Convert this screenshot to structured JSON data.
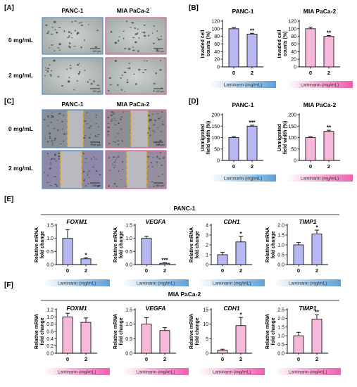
{
  "panels": {
    "A": {
      "label": "[A]",
      "col1": "PANC-1",
      "col2": "MIA PaCa-2",
      "row1": "0 mg/mL",
      "row2": "2 mg/mL",
      "scale": "100 µm"
    },
    "C": {
      "label": "[C]",
      "col1": "PANC-1",
      "col2": "MIA PaCa-2",
      "row1": "0 mg/mL",
      "row2": "2 mg/mL",
      "scale": "200 µm"
    },
    "B": {
      "label": "[B]"
    },
    "D": {
      "label": "[D]"
    },
    "E": {
      "label": "[E]",
      "group_title": "PANC-1"
    },
    "F": {
      "label": "[F]",
      "group_title": "MIA PaCa-2"
    }
  },
  "xaxis_title": "Laminarin (mg/mL)",
  "colors": {
    "panc_fill": "#b8b8f4",
    "mia_fill": "#f7b8dc",
    "panc_frame": "#5a90c8",
    "mia_frame": "#e0609e"
  },
  "chart_data": [
    {
      "id": "B1",
      "type": "bar",
      "title": "PANC-1",
      "ylabel": "Invaded cell counts (%)",
      "categories": [
        "0",
        "2"
      ],
      "values": [
        100,
        86
      ],
      "errors": [
        3,
        2
      ],
      "ylim": [
        0,
        120
      ],
      "yticks": [
        0,
        20,
        40,
        60,
        80,
        100,
        120
      ],
      "sig": [
        "",
        "**"
      ],
      "scheme": "panc"
    },
    {
      "id": "B2",
      "type": "bar",
      "title": "MIA PaCa-2",
      "ylabel": "Invaded cell counts (%)",
      "categories": [
        "0",
        "2"
      ],
      "values": [
        100,
        80
      ],
      "errors": [
        4,
        2
      ],
      "ylim": [
        0,
        120
      ],
      "yticks": [
        0,
        20,
        40,
        60,
        80,
        100,
        120
      ],
      "sig": [
        "",
        "**"
      ],
      "scheme": "mia"
    },
    {
      "id": "D1",
      "type": "bar",
      "title": "PANC-1",
      "ylabel": "Unmigrated field width (%)",
      "categories": [
        "0",
        "2"
      ],
      "values": [
        100,
        150
      ],
      "errors": [
        4,
        4
      ],
      "ylim": [
        0,
        200
      ],
      "yticks": [
        0,
        50,
        100,
        150,
        200
      ],
      "sig": [
        "",
        "***"
      ],
      "scheme": "panc"
    },
    {
      "id": "D2",
      "type": "bar",
      "title": "MIA  PaCa-2",
      "ylabel": "Unmigrated field width (%)",
      "categories": [
        "0",
        "2"
      ],
      "values": [
        100,
        127
      ],
      "errors": [
        3,
        5
      ],
      "ylim": [
        0,
        200
      ],
      "yticks": [
        0,
        50,
        100,
        150,
        200
      ],
      "sig": [
        "",
        "**"
      ],
      "scheme": "mia"
    },
    {
      "id": "E1",
      "type": "bar",
      "title": "FOXM1",
      "ylabel": "Relative mRNA fold change",
      "categories": [
        "0",
        "2"
      ],
      "values": [
        1.0,
        0.22
      ],
      "errors": [
        0.33,
        0.04
      ],
      "ylim": [
        0,
        1.5
      ],
      "yticks": [
        0.0,
        0.5,
        1.0,
        1.5
      ],
      "sig": [
        "",
        "*"
      ],
      "scheme": "panc"
    },
    {
      "id": "E2",
      "type": "bar",
      "title": "VEGFA",
      "ylabel": "Relative mRNA fold change",
      "categories": [
        "0",
        "2"
      ],
      "values": [
        1.0,
        0.05
      ],
      "errors": [
        0.07,
        0.02
      ],
      "ylim": [
        0,
        1.5
      ],
      "yticks": [
        0.0,
        0.5,
        1.0,
        1.5
      ],
      "sig": [
        "",
        "***"
      ],
      "scheme": "panc"
    },
    {
      "id": "E3",
      "type": "bar",
      "title": "CDH1",
      "ylabel": "Relative mRNA fold change",
      "categories": [
        "0",
        "2"
      ],
      "values": [
        1.0,
        2.3
      ],
      "errors": [
        0.25,
        0.55
      ],
      "ylim": [
        0,
        4
      ],
      "yticks": [
        0,
        1,
        2,
        3,
        4
      ],
      "sig": [
        "",
        "*"
      ],
      "scheme": "panc"
    },
    {
      "id": "E4",
      "type": "bar",
      "title": "TIMP1",
      "ylabel": "Relative mRNA fold change",
      "categories": [
        "0",
        "2"
      ],
      "values": [
        1.0,
        1.55
      ],
      "errors": [
        0.12,
        0.2
      ],
      "ylim": [
        0,
        2.0
      ],
      "yticks": [
        0.0,
        0.5,
        1.0,
        1.5,
        2.0
      ],
      "sig": [
        "",
        "*"
      ],
      "scheme": "panc"
    },
    {
      "id": "F1",
      "type": "bar",
      "title": "FOXM1",
      "ylabel": "Relative mRNA fold change",
      "categories": [
        "0",
        "2"
      ],
      "values": [
        1.0,
        0.85
      ],
      "errors": [
        0.1,
        0.12
      ],
      "ylim": [
        0,
        1.2
      ],
      "yticks": [
        0.0,
        0.2,
        0.4,
        0.6,
        0.8,
        1.0,
        1.2
      ],
      "sig": [
        "",
        ""
      ],
      "scheme": "mia"
    },
    {
      "id": "F2",
      "type": "bar",
      "title": "VEGFA",
      "ylabel": "Relative mRNA fold change",
      "categories": [
        "0",
        "2"
      ],
      "values": [
        1.0,
        0.78
      ],
      "errors": [
        0.22,
        0.1
      ],
      "ylim": [
        0,
        1.5
      ],
      "yticks": [
        0.0,
        0.5,
        1.0,
        1.5
      ],
      "sig": [
        "",
        ""
      ],
      "scheme": "mia"
    },
    {
      "id": "F3",
      "type": "bar",
      "title": "CDH1",
      "ylabel": "Relative mRNA fold change",
      "categories": [
        "0",
        "2"
      ],
      "values": [
        1.0,
        9.5
      ],
      "errors": [
        0.4,
        2.8
      ],
      "ylim": [
        0,
        15
      ],
      "yticks": [
        0,
        5,
        10,
        15
      ],
      "sig": [
        "",
        "*"
      ],
      "scheme": "mia"
    },
    {
      "id": "F4",
      "type": "bar",
      "title": "TIMP1",
      "ylabel": "Relative mRNA fold change",
      "categories": [
        "0",
        "2"
      ],
      "values": [
        1.0,
        1.95
      ],
      "errors": [
        0.2,
        0.25
      ],
      "ylim": [
        0,
        2.5
      ],
      "yticks": [
        0.0,
        0.5,
        1.0,
        1.5,
        2.0,
        2.5
      ],
      "sig": [
        "",
        "**"
      ],
      "scheme": "mia"
    }
  ]
}
